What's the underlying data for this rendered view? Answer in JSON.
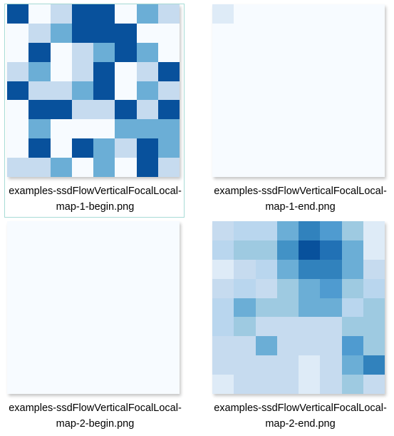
{
  "files": [
    {
      "label_line1": "examples-ssdFlowVerticalFocalLocal-",
      "label_line2": "map-1-begin.png",
      "selected": true,
      "grid": [
        [
          "#08519c",
          "#f7fbff",
          "#c6dbef",
          "#08519c",
          "#08519c",
          "#f7fbff",
          "#6baed6",
          "#c6dbef"
        ],
        [
          "#f7fbff",
          "#c6dbef",
          "#6baed6",
          "#08519c",
          "#08519c",
          "#08519c",
          "#f7fbff",
          "#f7fbff"
        ],
        [
          "#f7fbff",
          "#08519c",
          "#f7fbff",
          "#c6dbef",
          "#6baed6",
          "#08519c",
          "#6baed6",
          "#f7fbff"
        ],
        [
          "#c6dbef",
          "#6baed6",
          "#f7fbff",
          "#c6dbef",
          "#08519c",
          "#f7fbff",
          "#c6dbef",
          "#08519c"
        ],
        [
          "#08519c",
          "#c6dbef",
          "#c6dbef",
          "#6baed6",
          "#08519c",
          "#f7fbff",
          "#6baed6",
          "#c6dbef"
        ],
        [
          "#f7fbff",
          "#08519c",
          "#08519c",
          "#c6dbef",
          "#c6dbef",
          "#08519c",
          "#c6dbef",
          "#08519c"
        ],
        [
          "#f7fbff",
          "#6baed6",
          "#f7fbff",
          "#f7fbff",
          "#f7fbff",
          "#6baed6",
          "#6baed6",
          "#6baed6"
        ],
        [
          "#f7fbff",
          "#08519c",
          "#f7fbff",
          "#08519c",
          "#6baed6",
          "#c6dbef",
          "#08519c",
          "#6baed6"
        ],
        [
          "#c6dbef",
          "#c6dbef",
          "#6baed6",
          "#f7fbff",
          "#6baed6",
          "#f7fbff",
          "#08519c",
          "#c6dbef"
        ]
      ]
    },
    {
      "label_line1": "examples-ssdFlowVerticalFocalLocal-",
      "label_line2": "map-1-end.png",
      "selected": false,
      "grid": [
        [
          "#deebf7",
          "#f7fbff",
          "#f7fbff",
          "#f7fbff",
          "#f7fbff",
          "#f7fbff",
          "#f7fbff",
          "#f7fbff"
        ],
        [
          "#f7fbff",
          "#f7fbff",
          "#f7fbff",
          "#f7fbff",
          "#f7fbff",
          "#f7fbff",
          "#f7fbff",
          "#f7fbff"
        ],
        [
          "#f7fbff",
          "#f7fbff",
          "#f7fbff",
          "#f7fbff",
          "#f7fbff",
          "#f7fbff",
          "#f7fbff",
          "#f7fbff"
        ],
        [
          "#f7fbff",
          "#f7fbff",
          "#f7fbff",
          "#f7fbff",
          "#f7fbff",
          "#f7fbff",
          "#f7fbff",
          "#f7fbff"
        ],
        [
          "#f7fbff",
          "#f7fbff",
          "#f7fbff",
          "#f7fbff",
          "#f7fbff",
          "#f7fbff",
          "#f7fbff",
          "#f7fbff"
        ],
        [
          "#f7fbff",
          "#f7fbff",
          "#f7fbff",
          "#f7fbff",
          "#f7fbff",
          "#f7fbff",
          "#f7fbff",
          "#f7fbff"
        ],
        [
          "#f7fbff",
          "#f7fbff",
          "#f7fbff",
          "#f7fbff",
          "#f7fbff",
          "#f7fbff",
          "#f7fbff",
          "#f7fbff"
        ],
        [
          "#f7fbff",
          "#f7fbff",
          "#f7fbff",
          "#f7fbff",
          "#f7fbff",
          "#f7fbff",
          "#f7fbff",
          "#f7fbff"
        ],
        [
          "#f7fbff",
          "#f7fbff",
          "#f7fbff",
          "#f7fbff",
          "#f7fbff",
          "#f7fbff",
          "#f7fbff",
          "#f7fbff"
        ]
      ]
    },
    {
      "label_line1": "examples-ssdFlowVerticalFocalLocal-",
      "label_line2": "map-2-begin.png",
      "selected": false,
      "grid": [
        [
          "#f7fbff",
          "#f7fbff",
          "#f7fbff",
          "#f7fbff",
          "#f7fbff",
          "#f7fbff",
          "#f7fbff",
          "#f7fbff"
        ],
        [
          "#f7fbff",
          "#f7fbff",
          "#f7fbff",
          "#f7fbff",
          "#f7fbff",
          "#f7fbff",
          "#f7fbff",
          "#f7fbff"
        ],
        [
          "#f7fbff",
          "#f7fbff",
          "#f7fbff",
          "#f7fbff",
          "#f7fbff",
          "#f7fbff",
          "#f7fbff",
          "#f7fbff"
        ],
        [
          "#f7fbff",
          "#f7fbff",
          "#f7fbff",
          "#f7fbff",
          "#f7fbff",
          "#f7fbff",
          "#f7fbff",
          "#f7fbff"
        ],
        [
          "#f7fbff",
          "#f7fbff",
          "#f7fbff",
          "#f7fbff",
          "#f7fbff",
          "#f7fbff",
          "#f7fbff",
          "#f7fbff"
        ],
        [
          "#f7fbff",
          "#f7fbff",
          "#f7fbff",
          "#f7fbff",
          "#f7fbff",
          "#f7fbff",
          "#f7fbff",
          "#f7fbff"
        ],
        [
          "#f7fbff",
          "#f7fbff",
          "#f7fbff",
          "#f7fbff",
          "#f7fbff",
          "#f7fbff",
          "#f7fbff",
          "#f7fbff"
        ],
        [
          "#f7fbff",
          "#f7fbff",
          "#f7fbff",
          "#f7fbff",
          "#f7fbff",
          "#f7fbff",
          "#f7fbff",
          "#f7fbff"
        ],
        [
          "#f7fbff",
          "#f7fbff",
          "#f7fbff",
          "#f7fbff",
          "#f7fbff",
          "#f7fbff",
          "#f7fbff",
          "#f7fbff"
        ]
      ]
    },
    {
      "label_line1": "examples-ssdFlowVerticalFocalLocal-",
      "label_line2": "map-2-end.png",
      "selected": false,
      "grid": [
        [
          "#c6dbef",
          "#b9d6ee",
          "#b9d6ee",
          "#6baed6",
          "#3182bd",
          "#4f9bd0",
          "#9ecae1",
          "#deebf7"
        ],
        [
          "#b9d6ee",
          "#9ecae1",
          "#9ecae1",
          "#4292c6",
          "#08519c",
          "#2171b5",
          "#6baed6",
          "#deebf7"
        ],
        [
          "#deebf7",
          "#c6dbef",
          "#b9d6ee",
          "#6baed6",
          "#3182bd",
          "#3182bd",
          "#6baed6",
          "#c6dbef"
        ],
        [
          "#c6dbef",
          "#b9d6ee",
          "#c6dbef",
          "#9ecae1",
          "#6baed6",
          "#4f9bd0",
          "#9ecae1",
          "#b9d6ee"
        ],
        [
          "#b9d6ee",
          "#6baed6",
          "#9ecae1",
          "#9ecae1",
          "#6baed6",
          "#6baed6",
          "#b9d6ee",
          "#9ecae1"
        ],
        [
          "#b9d6ee",
          "#9ecae1",
          "#c6dbef",
          "#c6dbef",
          "#c6dbef",
          "#c6dbef",
          "#9ecae1",
          "#9ecae1"
        ],
        [
          "#c6dbef",
          "#c6dbef",
          "#6baed6",
          "#c6dbef",
          "#c6dbef",
          "#c6dbef",
          "#4f9bd0",
          "#9ecae1"
        ],
        [
          "#c6dbef",
          "#c6dbef",
          "#c6dbef",
          "#c6dbef",
          "#deebf7",
          "#c6dbef",
          "#6baed6",
          "#3182bd"
        ],
        [
          "#deebf7",
          "#c6dbef",
          "#c6dbef",
          "#c6dbef",
          "#deebf7",
          "#c6dbef",
          "#9ecae1",
          "#c6dbef"
        ]
      ]
    }
  ]
}
